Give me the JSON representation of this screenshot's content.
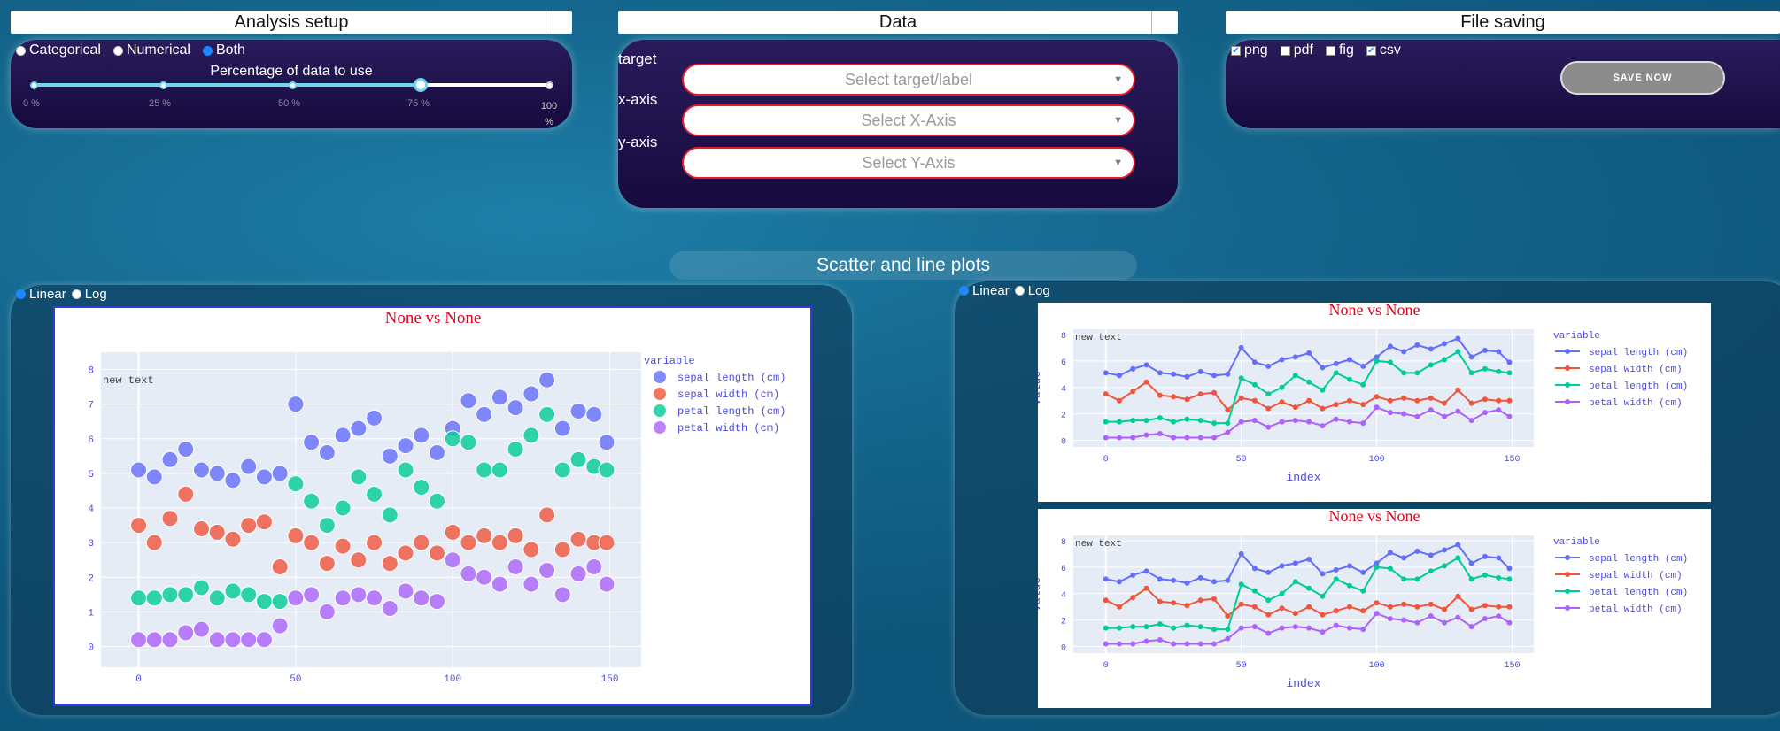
{
  "analysis": {
    "header": "Analysis setup",
    "modes": [
      {
        "label": "Categorical",
        "selected": false
      },
      {
        "label": "Numerical",
        "selected": false
      },
      {
        "label": "Both",
        "selected": true
      }
    ],
    "slider_label": "Percentage of data to use",
    "slider_value_percent": 75,
    "slider_marks": [
      "0 %",
      "25 %",
      "50 %",
      "75 %",
      "100 %"
    ]
  },
  "data_panel": {
    "header": "Data",
    "target_label": "target",
    "target_placeholder": "Select target/label",
    "xaxis_label": "x-axis",
    "xaxis_placeholder": "Select X-Axis",
    "yaxis_label": "y-axis",
    "yaxis_placeholder": "Select Y-Axis"
  },
  "file_saving": {
    "header": "File saving",
    "options": [
      {
        "label": "png",
        "checked": true
      },
      {
        "label": "pdf",
        "checked": false
      },
      {
        "label": "fig",
        "checked": false
      },
      {
        "label": "csv",
        "checked": true
      }
    ],
    "save_button": "SAVE NOW"
  },
  "section_title": "Scatter and line plots",
  "scale_left": {
    "linear": "Linear",
    "log": "Log",
    "selected": "Linear"
  },
  "scale_right": {
    "linear": "Linear",
    "log": "Log",
    "selected": "Linear"
  },
  "colors": {
    "sepal_length": "#636efa",
    "sepal_width": "#ef553b",
    "petal_length": "#00cc96",
    "petal_width": "#ab63fa",
    "title": "#e8001c",
    "axis_text": "#4a4adf",
    "plot_bg": "#e5ecf6"
  },
  "chart_data": [
    {
      "type": "scatter",
      "title": "None vs None",
      "annotation": "new text",
      "legend_title": "variable",
      "legend_position": "right",
      "xlim": [
        -12,
        160
      ],
      "ylim": [
        -0.6,
        8.5
      ],
      "x_ticks": [
        "0",
        "50",
        "100",
        "150"
      ],
      "y_ticks": [
        "0",
        "1",
        "2",
        "3",
        "4",
        "5",
        "6",
        "7",
        "8"
      ],
      "series": [
        {
          "name": "sepal length (cm)",
          "color": "#636efa",
          "x": [
            0,
            5,
            10,
            15,
            20,
            25,
            30,
            35,
            40,
            45,
            50,
            55,
            60,
            65,
            70,
            75,
            80,
            85,
            90,
            95,
            100,
            105,
            110,
            115,
            120,
            125,
            130,
            135,
            140,
            145,
            149
          ],
          "y": [
            5.1,
            4.9,
            5.4,
            5.7,
            5.1,
            5.0,
            4.8,
            5.2,
            4.9,
            5.0,
            7.0,
            5.9,
            5.6,
            6.1,
            6.3,
            6.6,
            5.5,
            5.8,
            6.1,
            5.6,
            6.3,
            7.1,
            6.7,
            7.2,
            6.9,
            7.3,
            7.7,
            6.3,
            6.8,
            6.7,
            5.9
          ]
        },
        {
          "name": "sepal width (cm)",
          "color": "#ef553b",
          "x": [
            0,
            5,
            10,
            15,
            20,
            25,
            30,
            35,
            40,
            45,
            50,
            55,
            60,
            65,
            70,
            75,
            80,
            85,
            90,
            95,
            100,
            105,
            110,
            115,
            120,
            125,
            130,
            135,
            140,
            145,
            149
          ],
          "y": [
            3.5,
            3.0,
            3.7,
            4.4,
            3.4,
            3.3,
            3.1,
            3.5,
            3.6,
            2.3,
            3.2,
            3.0,
            2.4,
            2.9,
            2.5,
            3.0,
            2.4,
            2.7,
            3.0,
            2.7,
            3.3,
            3.0,
            3.2,
            3.0,
            3.2,
            2.8,
            3.8,
            2.8,
            3.1,
            3.0,
            3.0
          ]
        },
        {
          "name": "petal length (cm)",
          "color": "#00cc96",
          "x": [
            0,
            5,
            10,
            15,
            20,
            25,
            30,
            35,
            40,
            45,
            50,
            55,
            60,
            65,
            70,
            75,
            80,
            85,
            90,
            95,
            100,
            105,
            110,
            115,
            120,
            125,
            130,
            135,
            140,
            145,
            149
          ],
          "y": [
            1.4,
            1.4,
            1.5,
            1.5,
            1.7,
            1.4,
            1.6,
            1.5,
            1.3,
            1.3,
            4.7,
            4.2,
            3.5,
            4.0,
            4.9,
            4.4,
            3.8,
            5.1,
            4.6,
            4.2,
            6.0,
            5.9,
            5.1,
            5.1,
            5.7,
            6.1,
            6.7,
            5.1,
            5.4,
            5.2,
            5.1
          ]
        },
        {
          "name": "petal width (cm)",
          "color": "#ab63fa",
          "x": [
            0,
            5,
            10,
            15,
            20,
            25,
            30,
            35,
            40,
            45,
            50,
            55,
            60,
            65,
            70,
            75,
            80,
            85,
            90,
            95,
            100,
            105,
            110,
            115,
            120,
            125,
            130,
            135,
            140,
            145,
            149
          ],
          "y": [
            0.2,
            0.2,
            0.2,
            0.4,
            0.5,
            0.2,
            0.2,
            0.2,
            0.2,
            0.6,
            1.4,
            1.5,
            1.0,
            1.4,
            1.5,
            1.4,
            1.1,
            1.6,
            1.4,
            1.3,
            2.5,
            2.1,
            2.0,
            1.8,
            2.3,
            1.8,
            2.2,
            1.5,
            2.1,
            2.3,
            1.8
          ]
        }
      ]
    },
    {
      "type": "line",
      "title": "None vs None",
      "annotation": "new text",
      "xlabel": "index",
      "ylabel": "value",
      "legend_title": "variable",
      "legend_position": "right",
      "xlim": [
        -12,
        158
      ],
      "ylim": [
        -0.5,
        8.4
      ],
      "x_ticks": [
        "0",
        "50",
        "100",
        "150"
      ],
      "y_ticks": [
        "0",
        "2",
        "4",
        "6",
        "8"
      ],
      "series_ref": "same as scatter series"
    },
    {
      "type": "line",
      "title": "None vs None",
      "annotation": "new text",
      "xlabel": "index",
      "ylabel": "value",
      "legend_title": "variable",
      "legend_position": "right",
      "xlim": [
        -12,
        158
      ],
      "ylim": [
        -0.5,
        8.4
      ],
      "x_ticks": [
        "0",
        "50",
        "100",
        "150"
      ],
      "y_ticks": [
        "0",
        "2",
        "4",
        "6",
        "8"
      ],
      "series_ref": "same as scatter series"
    }
  ]
}
